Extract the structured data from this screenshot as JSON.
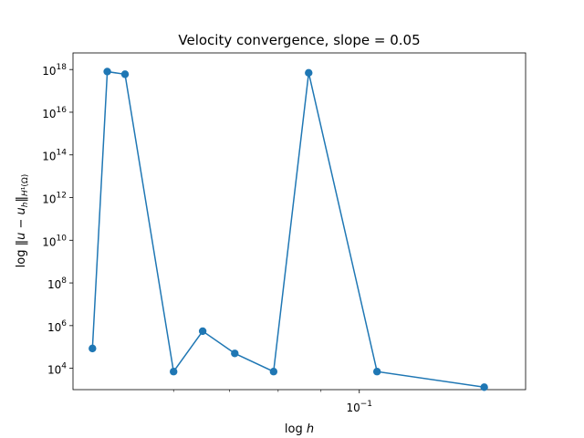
{
  "chart_data": {
    "type": "line",
    "title": "Velocity convergence, slope = 0.05",
    "xlabel": "log h",
    "ylabel": "log ||u − u_h||_{H¹(Ω)}",
    "xscale": "log",
    "yscale": "log",
    "xlim": [
      0.0455,
      0.158
    ],
    "ylim": [
      1000,
      6e+18
    ],
    "x_major_ticks": [
      {
        "value": 0.1,
        "label": "10",
        "exp": "−1"
      }
    ],
    "x_minor_ticks": [
      0.06,
      0.07,
      0.08,
      0.09
    ],
    "y_ticks": [
      {
        "value": 10000.0,
        "label": "10",
        "exp": "4"
      },
      {
        "value": 1000000.0,
        "label": "10",
        "exp": "6"
      },
      {
        "value": 100000000.0,
        "label": "10",
        "exp": "8"
      },
      {
        "value": 10000000000.0,
        "label": "10",
        "exp": "10"
      },
      {
        "value": 1000000000000.0,
        "label": "10",
        "exp": "12"
      },
      {
        "value": 100000000000000.0,
        "label": "10",
        "exp": "14"
      },
      {
        "value": 1e+16,
        "label": "10",
        "exp": "16"
      },
      {
        "value": 1e+18,
        "label": "10",
        "exp": "18"
      }
    ],
    "grid": false,
    "legend": false,
    "series": [
      {
        "color": "#1f77b4",
        "marker": "circle",
        "x": [
          0.048,
          0.05,
          0.0525,
          0.06,
          0.065,
          0.071,
          0.079,
          0.087,
          0.105,
          0.141
        ],
        "y": [
          85000.0,
          8e+17,
          6e+17,
          7000.0,
          550000.0,
          50000.0,
          7000.0,
          7e+17,
          7000.0,
          1300.0
        ]
      }
    ]
  }
}
